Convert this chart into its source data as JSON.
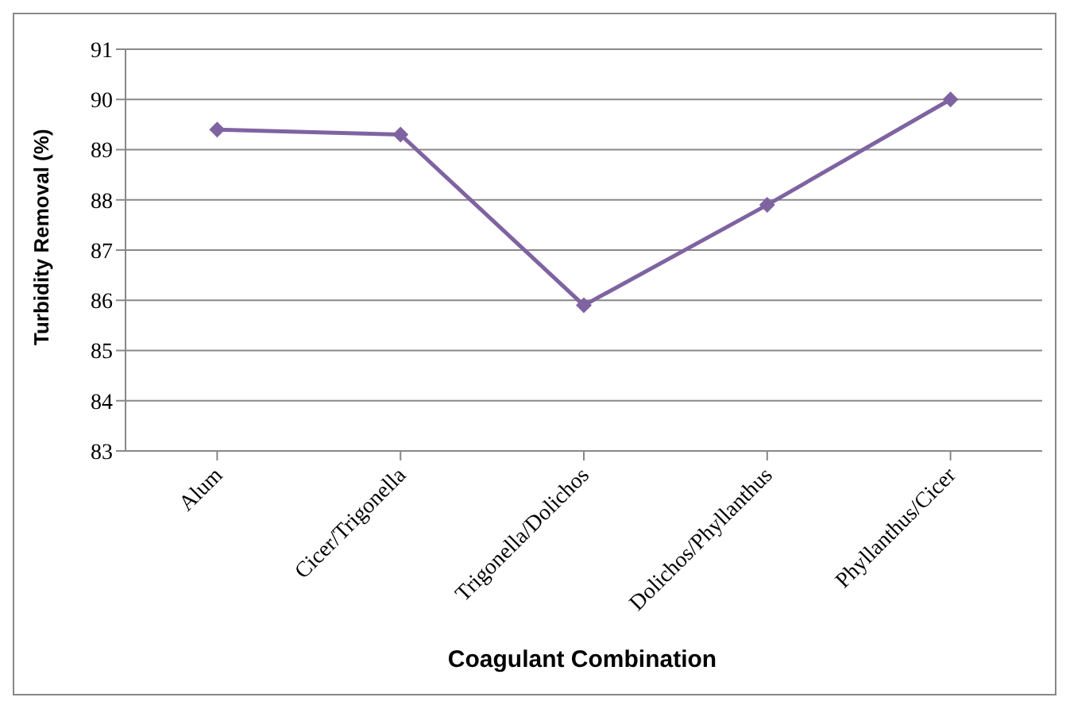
{
  "chart_data": {
    "type": "line",
    "xlabel": "Coagulant Combination",
    "ylabel": "Turbidity Removal (%)",
    "categories": [
      "Alum",
      "Cicer/Trigonella",
      "Trigonella/Dolichos",
      "Dolichos/Phyllanthus",
      "Phyllanthus/Cicer"
    ],
    "series": [
      {
        "color": "#7f63a1",
        "values": [
          89.4,
          89.3,
          85.9,
          87.9,
          90.0
        ]
      }
    ],
    "ylim": [
      83,
      91
    ],
    "yticks": [
      83,
      84,
      85,
      86,
      87,
      88,
      89,
      90,
      91
    ],
    "grid": "y",
    "marker": "diamond",
    "line_style": "solid",
    "legend": false
  }
}
